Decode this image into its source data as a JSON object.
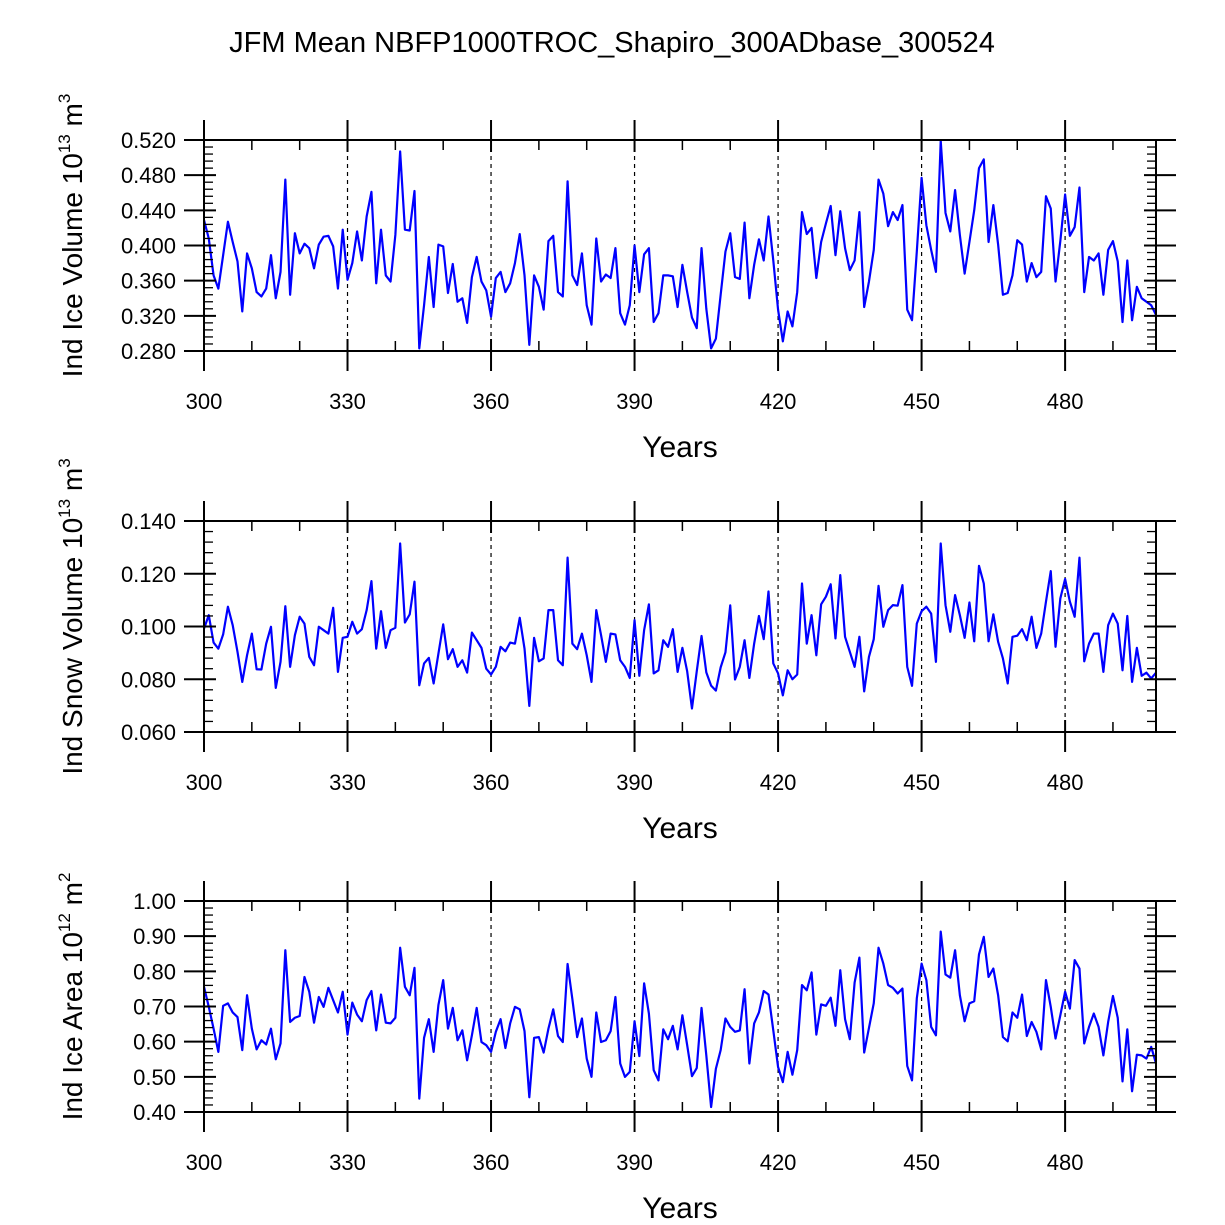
{
  "chart_data": {
    "type": "line",
    "title": "JFM Mean NBFP1000TROC_Shapiro_300ADbase_300524",
    "x_start": 300,
    "x_step": 1,
    "xlim": [
      300,
      499
    ],
    "x_ticks": [
      300,
      330,
      360,
      390,
      420,
      450,
      480
    ],
    "x_minor_step": 10,
    "reference_lines_x": [
      330,
      360,
      390,
      420,
      450,
      480
    ],
    "reference_line_style": "dashed",
    "line_color": "#0000ff",
    "panels": [
      {
        "id": "ice-volume",
        "xlabel": "Years",
        "ylabel_main": "Ind Ice Volume 10",
        "ylabel_exp": "13",
        "ylabel_unit": " m",
        "ylabel_unit_exp": "3",
        "ylim": [
          0.28,
          0.52
        ],
        "y_ticks": [
          0.28,
          0.32,
          0.36,
          0.4,
          0.44,
          0.48,
          0.52
        ],
        "y_tick_labels": [
          "0.280",
          "0.320",
          "0.360",
          "0.400",
          "0.440",
          "0.480",
          "0.520"
        ],
        "y_minor_step": 0.008,
        "values": [
          0.429,
          0.408,
          0.366,
          0.351,
          0.389,
          0.427,
          0.404,
          0.382,
          0.325,
          0.391,
          0.374,
          0.347,
          0.342,
          0.351,
          0.389,
          0.34,
          0.37,
          0.475,
          0.344,
          0.414,
          0.391,
          0.402,
          0.397,
          0.374,
          0.401,
          0.41,
          0.411,
          0.399,
          0.351,
          0.418,
          0.361,
          0.38,
          0.416,
          0.383,
          0.433,
          0.461,
          0.357,
          0.418,
          0.366,
          0.359,
          0.412,
          0.507,
          0.418,
          0.417,
          0.462,
          0.283,
          0.332,
          0.387,
          0.33,
          0.401,
          0.399,
          0.346,
          0.379,
          0.336,
          0.34,
          0.312,
          0.364,
          0.387,
          0.359,
          0.349,
          0.319,
          0.363,
          0.37,
          0.347,
          0.357,
          0.38,
          0.413,
          0.366,
          0.287,
          0.366,
          0.353,
          0.327,
          0.405,
          0.411,
          0.347,
          0.342,
          0.473,
          0.366,
          0.355,
          0.391,
          0.332,
          0.31,
          0.408,
          0.359,
          0.367,
          0.363,
          0.397,
          0.323,
          0.31,
          0.332,
          0.4,
          0.347,
          0.39,
          0.397,
          0.313,
          0.323,
          0.366,
          0.366,
          0.365,
          0.33,
          0.378,
          0.347,
          0.318,
          0.306,
          0.397,
          0.328,
          0.283,
          0.294,
          0.344,
          0.393,
          0.414,
          0.364,
          0.362,
          0.426,
          0.34,
          0.378,
          0.407,
          0.383,
          0.433,
          0.383,
          0.327,
          0.291,
          0.325,
          0.308,
          0.347,
          0.438,
          0.413,
          0.42,
          0.363,
          0.404,
          0.425,
          0.445,
          0.389,
          0.439,
          0.397,
          0.372,
          0.383,
          0.438,
          0.33,
          0.359,
          0.395,
          0.475,
          0.459,
          0.422,
          0.438,
          0.429,
          0.446,
          0.327,
          0.315,
          0.393,
          0.477,
          0.423,
          0.395,
          0.37,
          0.519,
          0.437,
          0.416,
          0.463,
          0.412,
          0.368,
          0.404,
          0.44,
          0.488,
          0.498,
          0.404,
          0.446,
          0.401,
          0.344,
          0.346,
          0.366,
          0.406,
          0.401,
          0.359,
          0.38,
          0.364,
          0.37,
          0.456,
          0.442,
          0.359,
          0.405,
          0.458,
          0.411,
          0.421,
          0.466,
          0.347,
          0.387,
          0.383,
          0.391,
          0.344,
          0.395,
          0.405,
          0.382,
          0.313,
          0.383,
          0.315,
          0.353,
          0.34,
          0.336,
          0.332,
          0.321
        ]
      },
      {
        "id": "snow-volume",
        "xlabel": "Years",
        "ylabel_main": "Ind Snow Volume 10",
        "ylabel_exp": "13",
        "ylabel_unit": " m",
        "ylabel_unit_exp": "3",
        "ylim": [
          0.06,
          0.14
        ],
        "y_ticks": [
          0.06,
          0.08,
          0.1,
          0.12,
          0.14
        ],
        "y_tick_labels": [
          "0.060",
          "0.080",
          "0.100",
          "0.120",
          "0.140"
        ],
        "y_minor_step": 0.004,
        "values": [
          0.0992,
          0.1043,
          0.0939,
          0.0916,
          0.097,
          0.1075,
          0.1005,
          0.0904,
          0.079,
          0.0891,
          0.0973,
          0.0838,
          0.0837,
          0.0935,
          0.0999,
          0.0767,
          0.0866,
          0.1077,
          0.0847,
          0.0967,
          0.1037,
          0.1011,
          0.0885,
          0.0853,
          0.0999,
          0.0986,
          0.0973,
          0.1071,
          0.0828,
          0.0957,
          0.0961,
          0.1018,
          0.0973,
          0.099,
          0.1062,
          0.1172,
          0.0916,
          0.1058,
          0.0919,
          0.0986,
          0.0995,
          0.1315,
          0.1015,
          0.1046,
          0.117,
          0.0777,
          0.086,
          0.0881,
          0.0784,
          0.0897,
          0.1008,
          0.0876,
          0.0914,
          0.0847,
          0.0872,
          0.0825,
          0.0977,
          0.0948,
          0.0919,
          0.084,
          0.0818,
          0.0847,
          0.0923,
          0.0906,
          0.0939,
          0.0935,
          0.1033,
          0.0916,
          0.0699,
          0.0957,
          0.0868,
          0.0879,
          0.1062,
          0.1062,
          0.0872,
          0.0853,
          0.1261,
          0.0935,
          0.0914,
          0.0973,
          0.0891,
          0.079,
          0.1062,
          0.0967,
          0.0866,
          0.0973,
          0.097,
          0.0872,
          0.0847,
          0.0805,
          0.1024,
          0.0813,
          0.0986,
          0.1084,
          0.0822,
          0.0834,
          0.0948,
          0.0923,
          0.099,
          0.0828,
          0.0919,
          0.083,
          0.0689,
          0.083,
          0.0964,
          0.0826,
          0.0776,
          0.0757,
          0.0845,
          0.0902,
          0.108,
          0.0799,
          0.0847,
          0.0948,
          0.0805,
          0.0935,
          0.104,
          0.0952,
          0.1133,
          0.086,
          0.0822,
          0.0739,
          0.0834,
          0.08,
          0.0818,
          0.1163,
          0.0935,
          0.1043,
          0.0891,
          0.1084,
          0.1113,
          0.116,
          0.0955,
          0.1195,
          0.0961,
          0.0904,
          0.0847,
          0.0961,
          0.0754,
          0.0885,
          0.0952,
          0.1154,
          0.0999,
          0.1062,
          0.1081,
          0.1079,
          0.1157,
          0.0847,
          0.0775,
          0.1011,
          0.1058,
          0.1075,
          0.1049,
          0.0866,
          0.1315,
          0.1081,
          0.098,
          0.1119,
          0.1043,
          0.0957,
          0.1091,
          0.0944,
          0.123,
          0.1163,
          0.0944,
          0.1046,
          0.0942,
          0.0879,
          0.0784,
          0.0961,
          0.0965,
          0.099,
          0.0948,
          0.1037,
          0.0919,
          0.0973,
          0.1094,
          0.121,
          0.0923,
          0.1106,
          0.118,
          0.1094,
          0.1037,
          0.1261,
          0.0868,
          0.0935,
          0.0973,
          0.0973,
          0.0828,
          0.1005,
          0.1049,
          0.1011,
          0.0834,
          0.104,
          0.079,
          0.0919,
          0.0813,
          0.0825,
          0.0803,
          0.0825
        ]
      },
      {
        "id": "ice-area",
        "xlabel": "Years",
        "ylabel_main": "Ind Ice Area 10",
        "ylabel_exp": "12",
        "ylabel_unit": " m",
        "ylabel_unit_exp": "2",
        "ylim": [
          0.4,
          1.0
        ],
        "y_ticks": [
          0.4,
          0.5,
          0.6,
          0.7,
          0.8,
          0.9,
          1.0
        ],
        "y_tick_labels": [
          "0.40",
          "0.50",
          "0.60",
          "0.70",
          "0.80",
          "0.90",
          "1.00"
        ],
        "y_minor_step": 0.02,
        "values": [
          0.756,
          0.699,
          0.637,
          0.571,
          0.702,
          0.709,
          0.683,
          0.67,
          0.576,
          0.732,
          0.637,
          0.578,
          0.604,
          0.592,
          0.637,
          0.55,
          0.595,
          0.86,
          0.656,
          0.668,
          0.673,
          0.784,
          0.742,
          0.654,
          0.727,
          0.699,
          0.753,
          0.718,
          0.683,
          0.742,
          0.62,
          0.711,
          0.677,
          0.658,
          0.718,
          0.744,
          0.632,
          0.734,
          0.654,
          0.652,
          0.668,
          0.867,
          0.756,
          0.732,
          0.81,
          0.438,
          0.611,
          0.664,
          0.571,
          0.704,
          0.775,
          0.637,
          0.696,
          0.604,
          0.632,
          0.547,
          0.618,
          0.696,
          0.599,
          0.59,
          0.571,
          0.628,
          0.664,
          0.582,
          0.652,
          0.699,
          0.692,
          0.63,
          0.442,
          0.611,
          0.613,
          0.569,
          0.637,
          0.692,
          0.616,
          0.599,
          0.821,
          0.721,
          0.613,
          0.666,
          0.552,
          0.5,
          0.683,
          0.599,
          0.604,
          0.63,
          0.727,
          0.538,
          0.5,
          0.514,
          0.658,
          0.559,
          0.766,
          0.68,
          0.519,
          0.49,
          0.635,
          0.607,
          0.645,
          0.578,
          0.675,
          0.59,
          0.502,
          0.525,
          0.696,
          0.561,
          0.414,
          0.523,
          0.576,
          0.666,
          0.642,
          0.628,
          0.632,
          0.749,
          0.538,
          0.652,
          0.683,
          0.744,
          0.734,
          0.632,
          0.528,
          0.485,
          0.571,
          0.506,
          0.576,
          0.761,
          0.746,
          0.797,
          0.62,
          0.706,
          0.702,
          0.725,
          0.645,
          0.803,
          0.664,
          0.607,
          0.768,
          0.839,
          0.569,
          0.639,
          0.709,
          0.867,
          0.822,
          0.761,
          0.753,
          0.737,
          0.751,
          0.531,
          0.49,
          0.723,
          0.822,
          0.775,
          0.642,
          0.618,
          0.913,
          0.791,
          0.782,
          0.86,
          0.732,
          0.658,
          0.709,
          0.715,
          0.848,
          0.898,
          0.784,
          0.808,
          0.732,
          0.613,
          0.601,
          0.683,
          0.668,
          0.734,
          0.616,
          0.656,
          0.628,
          0.578,
          0.775,
          0.699,
          0.609,
          0.675,
          0.742,
          0.694,
          0.832,
          0.808,
          0.595,
          0.642,
          0.68,
          0.642,
          0.561,
          0.656,
          0.73,
          0.668,
          0.487,
          0.635,
          0.459,
          0.563,
          0.561,
          0.552,
          0.585,
          0.538
        ]
      }
    ]
  }
}
